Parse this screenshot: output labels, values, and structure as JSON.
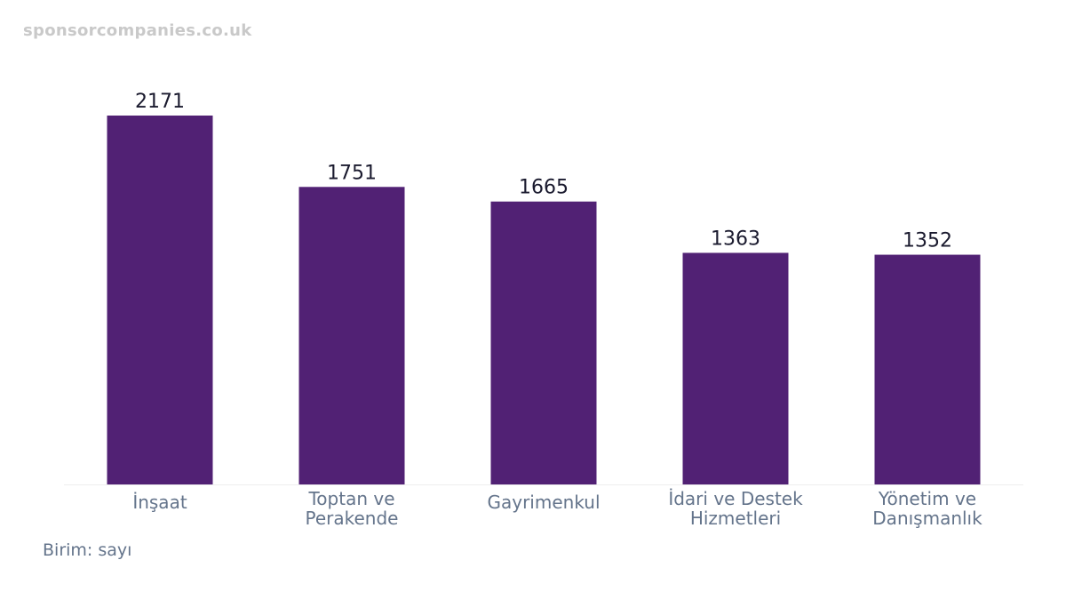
{
  "watermark": "sponsorcompanies.co.uk",
  "unit_note": "Birim: sayı",
  "colors": {
    "bar": "#512174",
    "value_label": "#1a1a2e",
    "tick_label": "#64748b",
    "baseline": "#eeeeee"
  },
  "chart_data": {
    "type": "bar",
    "categories": [
      [
        "İnşaat"
      ],
      [
        "Toptan ve",
        "Perakende"
      ],
      [
        "Gayrimenkul"
      ],
      [
        "İdari ve Destek",
        "Hizmetleri"
      ],
      [
        "Yönetim ve",
        "Danışmanlık"
      ]
    ],
    "values": [
      2171,
      1751,
      1665,
      1363,
      1352
    ],
    "data_labels": [
      "2171",
      "1751",
      "1665",
      "1363",
      "1352"
    ],
    "title": "",
    "xlabel": "",
    "ylabel": "",
    "ylim": [
      0,
      2171
    ],
    "grid": false,
    "legend": "none"
  }
}
